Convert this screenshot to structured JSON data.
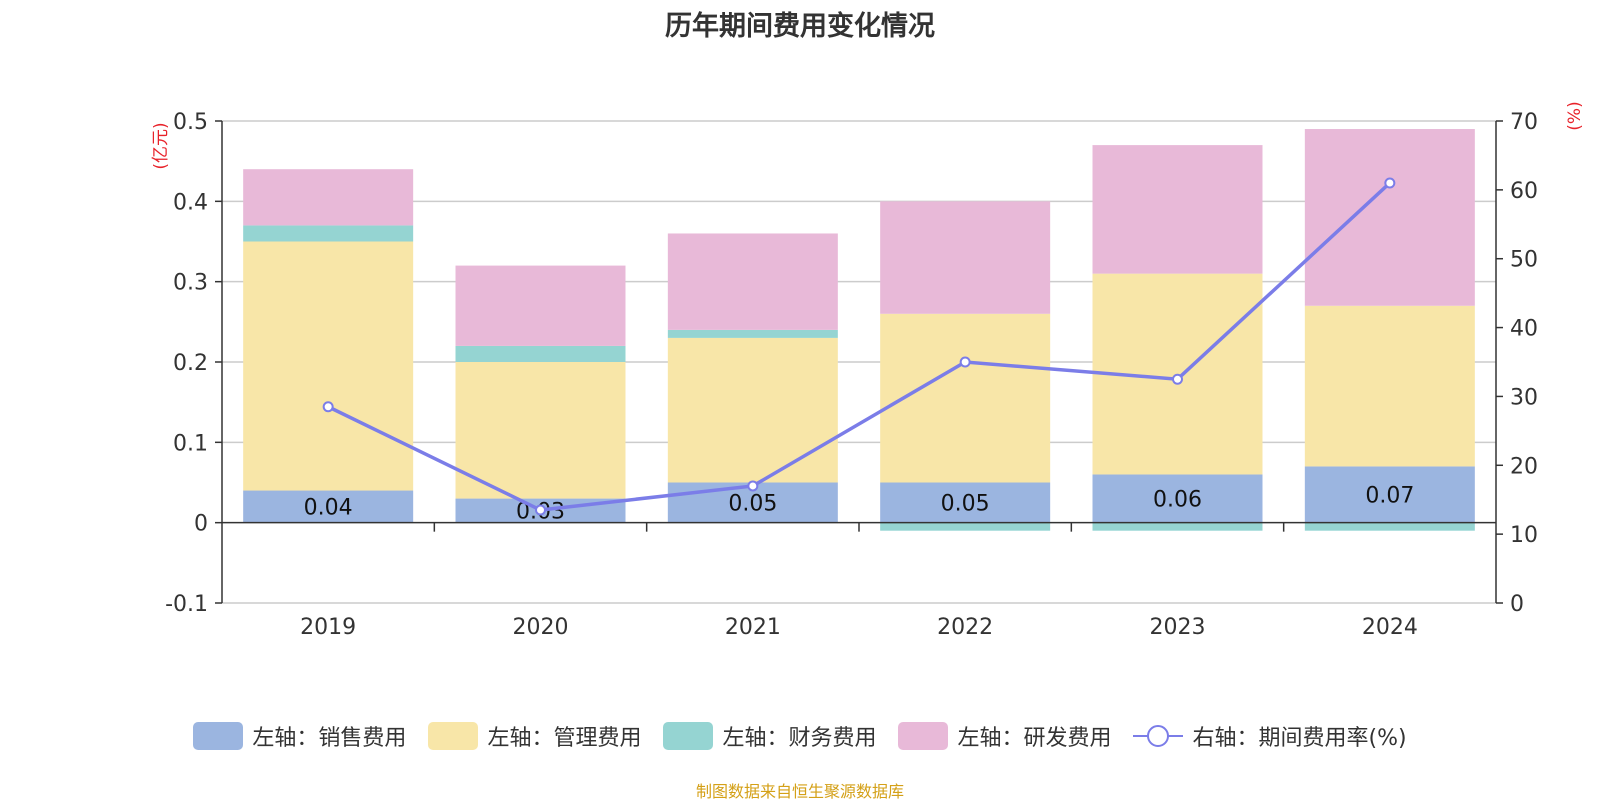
{
  "page": {
    "title": "历年期间费用变化情况",
    "source": "制图数据来自恒生聚源数据库"
  },
  "chart_data": {
    "type": "bar",
    "stacked": true,
    "categories": [
      "2019",
      "2020",
      "2021",
      "2022",
      "2023",
      "2024"
    ],
    "left_axis": {
      "label": "(亿元)",
      "ylim": [
        -0.1,
        0.5
      ],
      "ticks": [
        "0.5",
        "0.4",
        "0.3",
        "0.2",
        "0.1",
        "0",
        "-0.1"
      ],
      "tick_values": [
        0.5,
        0.4,
        0.3,
        0.2,
        0.1,
        0,
        -0.1
      ]
    },
    "right_axis": {
      "label": "(%)",
      "ylim": [
        0,
        70
      ],
      "ticks": [
        "70",
        "60",
        "50",
        "40",
        "30",
        "20",
        "10",
        "0"
      ],
      "tick_values": [
        70,
        60,
        50,
        40,
        30,
        20,
        10,
        0
      ]
    },
    "series": [
      {
        "name": "左轴：销售费用",
        "axis": "left",
        "color": "#9bb5e0",
        "values": [
          0.04,
          0.03,
          0.05,
          0.05,
          0.06,
          0.07
        ],
        "labels": [
          "0.04",
          "0.03",
          "0.05",
          "0.05",
          "0.06",
          "0.07"
        ]
      },
      {
        "name": "左轴：管理费用",
        "axis": "left",
        "color": "#f8e6a8",
        "values": [
          0.31,
          0.17,
          0.18,
          0.21,
          0.25,
          0.2
        ]
      },
      {
        "name": "左轴：财务费用",
        "axis": "left",
        "color": "#95d4d2",
        "values": [
          0.02,
          0.02,
          0.01,
          -0.01,
          -0.01,
          -0.01
        ]
      },
      {
        "name": "左轴：研发费用",
        "axis": "left",
        "color": "#e8b9d8",
        "values": [
          0.07,
          0.1,
          0.12,
          0.14,
          0.16,
          0.22
        ]
      },
      {
        "name": "右轴：期间费用率(%)",
        "axis": "right",
        "type": "line",
        "color": "#7b7de8",
        "values": [
          28.5,
          13.5,
          17.0,
          35.0,
          32.5,
          61.0
        ]
      }
    ],
    "grid": true,
    "legend_position": "bottom"
  }
}
